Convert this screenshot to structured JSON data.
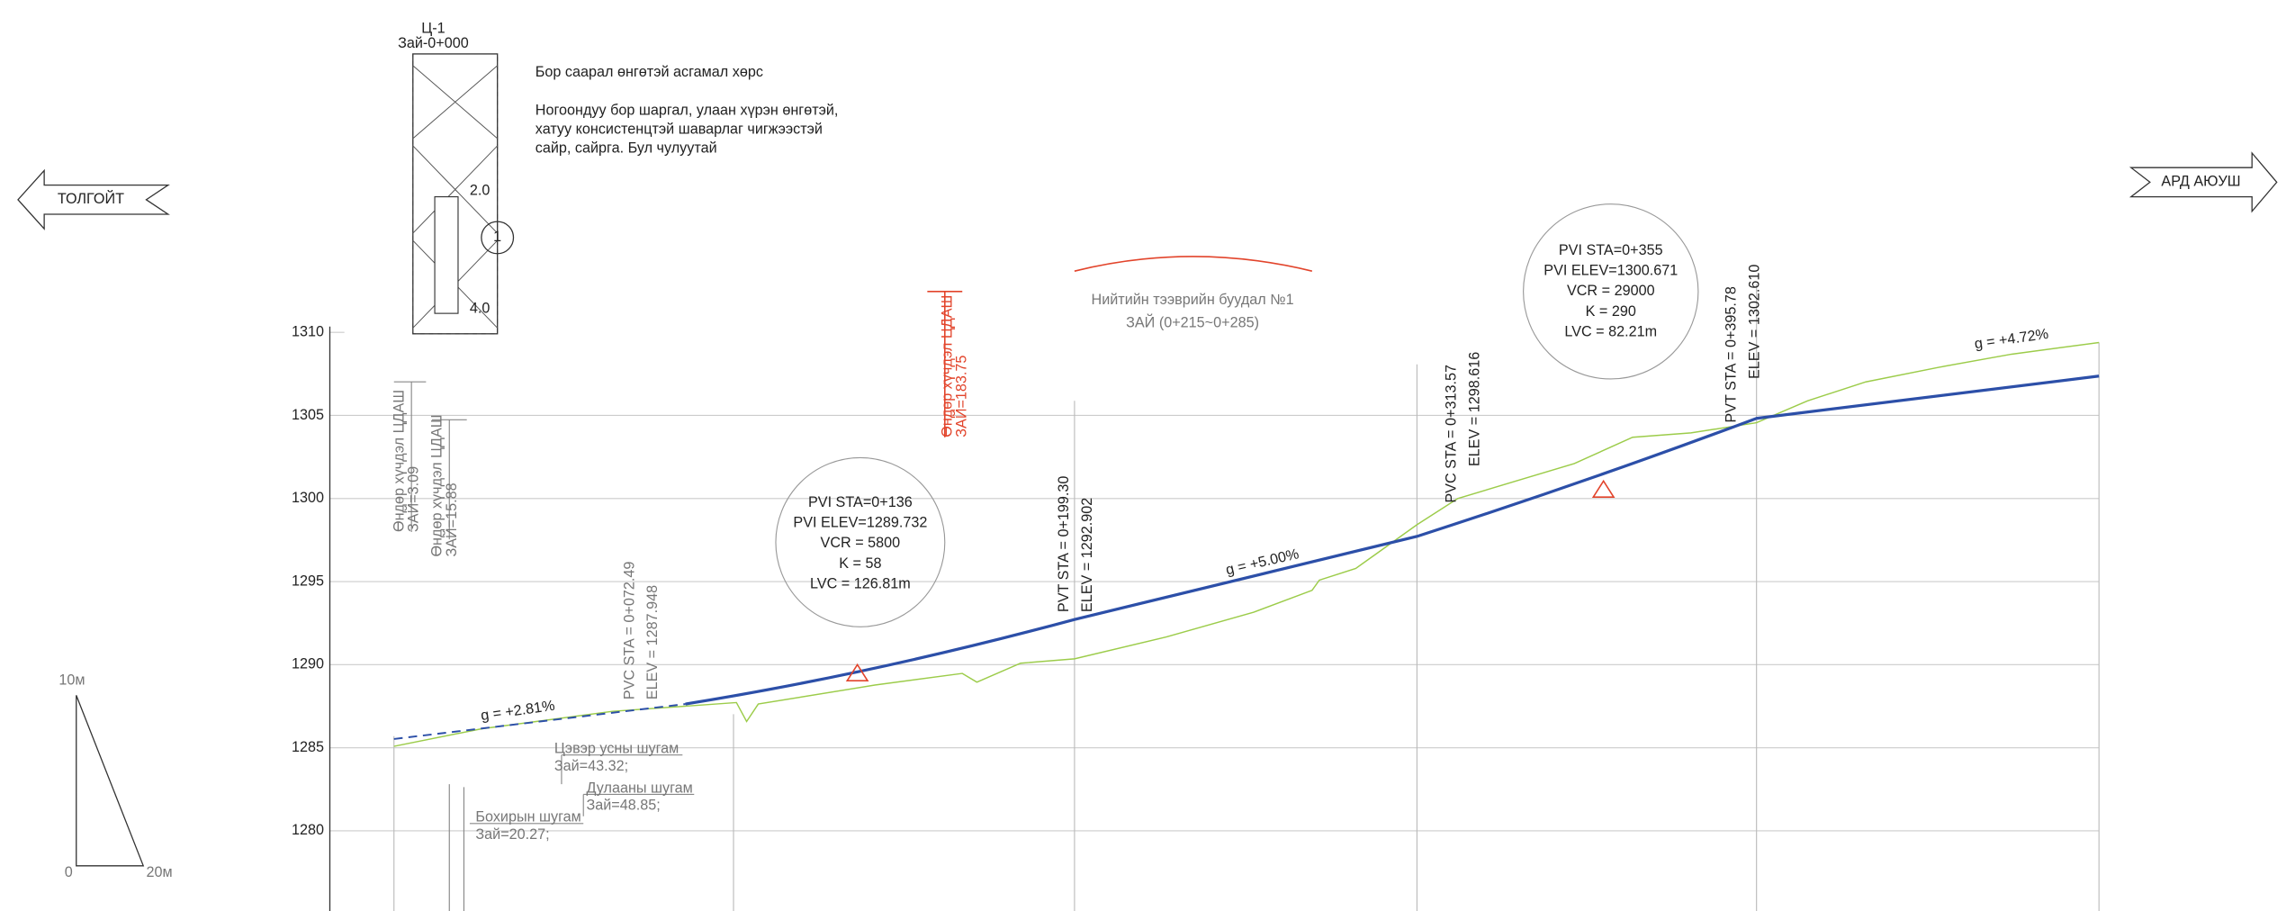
{
  "directions": {
    "left": "ТОЛГОЙТ",
    "right": "АРД АЮУШ"
  },
  "borehole": {
    "name": "Ц-1",
    "station": "Зай-0+000",
    "depth_1": "2.0",
    "depth_2": "4.0",
    "layer": "1"
  },
  "soil_legend": [
    "Бор саарал өнгөтэй асгамал хөрс",
    "Ногоондуу бор шаргал, улаан хүрэн өнгөтэй,",
    "хатуу консистенцтэй шаварлаг чигжээстэй",
    "сайр, сайрга. Бул чулуутай"
  ],
  "bus_stop": {
    "title": "Нийтийн тээврийн буудал №1",
    "range": "ЗАЙ (0+215~0+285)"
  },
  "pvi_1": [
    "PVI STA=0+136",
    "PVI ELEV=1289.732",
    "VCR = 5800",
    "K = 58",
    "LVC = 126.81m"
  ],
  "pvi_2": [
    "PVI STA=0+355",
    "PVI ELEV=1300.671",
    "VCR = 29000",
    "K = 290",
    "LVC = 82.21m"
  ],
  "stations": [
    {
      "sta": "PVC STA = 0+072.49",
      "elev": "ELEV = 1287.948"
    },
    {
      "sta": "PVT STA = 0+199.30",
      "elev": "ELEV = 1292.902"
    },
    {
      "sta": "PVC STA = 0+313.57",
      "elev": "ELEV = 1298.616"
    },
    {
      "sta": "PVT STA = 0+395.78",
      "elev": "ELEV = 1302.610"
    }
  ],
  "grades": [
    "g = +2.81%",
    "g = +5.00%",
    "g = +4.72%"
  ],
  "power_lines": [
    {
      "label": "Өндөр хүчдэл ЦДАШ",
      "dist": "ЗАЙ=183.75"
    },
    {
      "label": "Өндөр хүчдэл ЦДАШ",
      "dist": "ЗАЙ=3.09"
    },
    {
      "label": "Өндөр хүчдэл ЦДАШ",
      "dist": "ЗАЙ=15.88"
    }
  ],
  "utilities": [
    {
      "label": "Цэвэр усны шугам",
      "dist": "Зай=43.32;"
    },
    {
      "label": "Дулааны шугам",
      "dist": "Зай=48.85;"
    },
    {
      "label": "Бохирын шугам",
      "dist": "Зай=20.27;"
    }
  ],
  "scale": {
    "vertical": "10м",
    "origin": "0",
    "horizontal": "20м"
  },
  "elevation_ticks": [
    "1310",
    "1305",
    "1300",
    "1295",
    "1290",
    "1285",
    "1280"
  ]
}
